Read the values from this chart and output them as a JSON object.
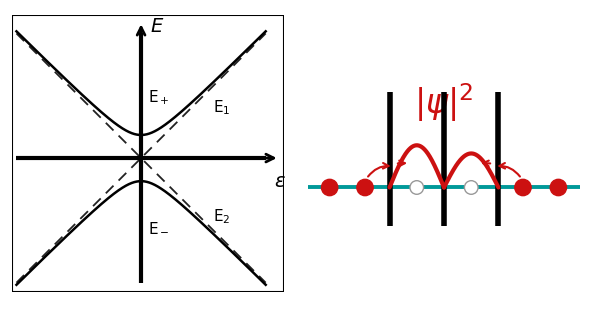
{
  "tc": 0.25,
  "dashed_color": "#222222",
  "solid_color": "#000000",
  "label_E_plus": "E$_+$",
  "label_E_minus": "E$_-$",
  "label_E1": "E$_1$",
  "label_E2": "E$_2$",
  "label_E": "E",
  "label_eps": "ε",
  "right_wave_color": "#cc1111",
  "right_baseline_color": "#009999",
  "right_dot_color_filled": "#cc1111",
  "psi_color": "#cc1111",
  "psi_fontsize": 24,
  "label_fontsize": 11,
  "axis_label_fontsize": 13,
  "left_xlim": [
    -1.4,
    1.55
  ],
  "left_ylim": [
    -1.45,
    1.55
  ]
}
